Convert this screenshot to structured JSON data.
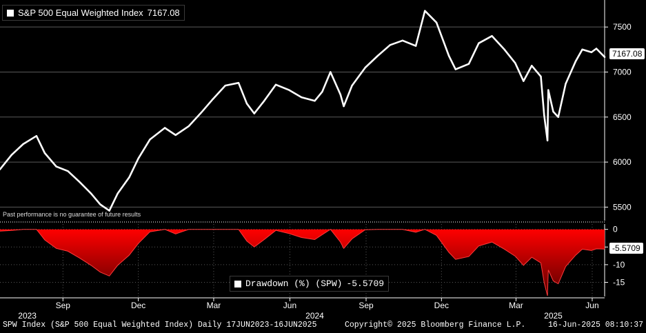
{
  "header": {
    "series_label": "S&P 500 Equal Weighted Index",
    "last_value": "7167.08"
  },
  "disclaimer": "Past performance is no guarantee of future results",
  "price_tag": "7167.08",
  "drawdown": {
    "legend_label": "Drawdown (%) (SPW)",
    "legend_value": "-5.5709",
    "tag": "-5.5709"
  },
  "footer": {
    "left": "SPW Index (S&P 500 Equal Weighted Index)  Daily 17JUN2023-16JUN2025",
    "mid": "Copyright© 2025 Bloomberg Finance L.P.",
    "right": "16-Jun-2025 08:10:37"
  },
  "colors": {
    "background": "#000000",
    "price_line": "#ffffff",
    "drawdown_fill": "#ff0000",
    "grid": "#5a5a5a"
  },
  "chart_data": [
    {
      "type": "line",
      "series": [
        {
          "name": "S&P 500 Equal Weighted Index"
        }
      ],
      "ylim": [
        5350,
        7800
      ],
      "yticks": [
        5500,
        6000,
        6500,
        7000,
        7500
      ],
      "xlim": [
        "2023-06-17",
        "2025-06-16"
      ],
      "x": [
        "2023-06-17",
        "2023-07-01",
        "2023-07-15",
        "2023-07-31",
        "2023-08-10",
        "2023-08-24",
        "2023-09-07",
        "2023-09-21",
        "2023-10-05",
        "2023-10-16",
        "2023-10-27",
        "2023-11-06",
        "2023-11-20",
        "2023-12-01",
        "2023-12-15",
        "2024-01-02",
        "2024-01-15",
        "2024-01-31",
        "2024-02-15",
        "2024-02-29",
        "2024-03-15",
        "2024-03-31",
        "2024-04-10",
        "2024-04-19",
        "2024-05-01",
        "2024-05-15",
        "2024-05-31",
        "2024-06-15",
        "2024-07-01",
        "2024-07-10",
        "2024-07-20",
        "2024-08-01",
        "2024-08-05",
        "2024-08-15",
        "2024-08-31",
        "2024-09-15",
        "2024-09-30",
        "2024-10-15",
        "2024-10-31",
        "2024-11-11",
        "2024-11-25",
        "2024-12-10",
        "2024-12-18",
        "2025-01-03",
        "2025-01-15",
        "2025-01-31",
        "2025-02-15",
        "2025-02-28",
        "2025-03-10",
        "2025-03-20",
        "2025-03-31",
        "2025-04-04",
        "2025-04-08",
        "2025-04-09",
        "2025-04-15",
        "2025-04-21",
        "2025-04-30",
        "2025-05-12",
        "2025-05-20",
        "2025-05-31",
        "2025-06-06",
        "2025-06-16"
      ],
      "values": [
        5920,
        6080,
        6200,
        6290,
        6100,
        5950,
        5900,
        5780,
        5650,
        5530,
        5460,
        5650,
        5830,
        6040,
        6250,
        6380,
        6300,
        6400,
        6550,
        6700,
        6850,
        6880,
        6650,
        6540,
        6680,
        6860,
        6800,
        6720,
        6680,
        6780,
        7000,
        6750,
        6620,
        6850,
        7050,
        7180,
        7300,
        7350,
        7290,
        7680,
        7550,
        7180,
        7030,
        7090,
        7320,
        7400,
        7250,
        7100,
        6900,
        7070,
        6950,
        6520,
        6240,
        6800,
        6560,
        6500,
        6870,
        7120,
        7250,
        7220,
        7260,
        7167.08
      ]
    },
    {
      "type": "area",
      "series": [
        {
          "name": "Drawdown (%) (SPW)"
        }
      ],
      "ylim": [
        -19,
        1.5
      ],
      "yticks": [
        0,
        -5,
        -10,
        -15
      ],
      "xlim": [
        "2023-06-17",
        "2025-06-16"
      ],
      "x": [
        "2023-06-17",
        "2023-07-01",
        "2023-07-15",
        "2023-07-31",
        "2023-08-10",
        "2023-08-24",
        "2023-09-07",
        "2023-09-21",
        "2023-10-05",
        "2023-10-16",
        "2023-10-27",
        "2023-11-06",
        "2023-11-20",
        "2023-12-01",
        "2023-12-15",
        "2024-01-02",
        "2024-01-15",
        "2024-01-31",
        "2024-02-15",
        "2024-02-29",
        "2024-03-15",
        "2024-03-31",
        "2024-04-10",
        "2024-04-19",
        "2024-05-01",
        "2024-05-15",
        "2024-05-31",
        "2024-06-15",
        "2024-07-01",
        "2024-07-10",
        "2024-07-20",
        "2024-08-01",
        "2024-08-05",
        "2024-08-15",
        "2024-08-31",
        "2024-09-15",
        "2024-09-30",
        "2024-10-15",
        "2024-10-31",
        "2024-11-11",
        "2024-11-25",
        "2024-12-10",
        "2024-12-18",
        "2025-01-03",
        "2025-01-15",
        "2025-01-31",
        "2025-02-15",
        "2025-02-28",
        "2025-03-10",
        "2025-03-20",
        "2025-03-31",
        "2025-04-04",
        "2025-04-08",
        "2025-04-09",
        "2025-04-15",
        "2025-04-21",
        "2025-04-30",
        "2025-05-12",
        "2025-05-20",
        "2025-05-31",
        "2025-06-06",
        "2025-06-16"
      ],
      "values": [
        -0.5,
        -0.3,
        0,
        0,
        -3,
        -5.4,
        -6.2,
        -8.1,
        -10.2,
        -12.1,
        -13.2,
        -10.2,
        -7.3,
        -4.0,
        -0.7,
        0,
        -1.3,
        0,
        0,
        0,
        0,
        0,
        -3.3,
        -5.0,
        -2.9,
        -0.3,
        -1.2,
        -2.3,
        -2.9,
        -1.5,
        0,
        -3.6,
        -5.4,
        -2.7,
        -0.1,
        0,
        0,
        0,
        -0.8,
        0,
        -1.7,
        -6.5,
        -8.5,
        -7.7,
        -4.7,
        -3.6,
        -5.6,
        -7.6,
        -10.2,
        -7.9,
        -9.5,
        -15.1,
        -18.8,
        -11.5,
        -14.6,
        -15.4,
        -10.5,
        -7.3,
        -5.6,
        -6.0,
        -5.5,
        -5.5709
      ]
    }
  ],
  "x_axis": {
    "tick_labels": [
      {
        "label": "Sep",
        "date": "2023-09-01"
      },
      {
        "label": "Dec",
        "date": "2023-12-01"
      },
      {
        "label": "Mar",
        "date": "2024-03-01"
      },
      {
        "label": "Jun",
        "date": "2024-06-01"
      },
      {
        "label": "Sep",
        "date": "2024-09-01"
      },
      {
        "label": "Dec",
        "date": "2024-12-01"
      },
      {
        "label": "Mar",
        "date": "2025-03-01"
      },
      {
        "label": "Jun",
        "date": "2025-06-01"
      }
    ],
    "year_labels": [
      {
        "label": "2023",
        "date": "2023-07-20"
      },
      {
        "label": "2024",
        "date": "2024-07-01"
      },
      {
        "label": "2025",
        "date": "2025-04-15"
      }
    ]
  }
}
